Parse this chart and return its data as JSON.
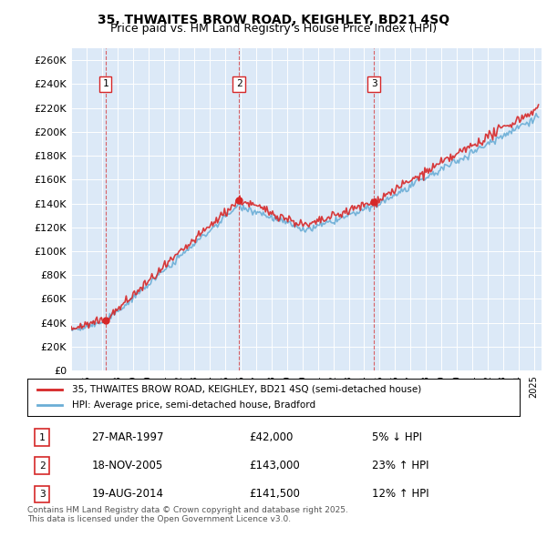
{
  "title_line1": "35, THWAITES BROW ROAD, KEIGHLEY, BD21 4SQ",
  "title_line2": "Price paid vs. HM Land Registry's House Price Index (HPI)",
  "ylabel": "",
  "background_color": "#dce9f7",
  "plot_bg_color": "#dce9f7",
  "fig_bg_color": "#ffffff",
  "legend_line1": "35, THWAITES BROW ROAD, KEIGHLEY, BD21 4SQ (semi-detached house)",
  "legend_line2": "HPI: Average price, semi-detached house, Bradford",
  "transactions": [
    {
      "num": 1,
      "date": "27-MAR-1997",
      "price": 42000,
      "pct": "5%",
      "dir": "↓",
      "year": 1997.23
    },
    {
      "num": 2,
      "date": "18-NOV-2005",
      "price": 143000,
      "pct": "23%",
      "dir": "↑",
      "year": 2005.88
    },
    {
      "num": 3,
      "date": "19-AUG-2014",
      "price": 141500,
      "pct": "12%",
      "dir": "↑",
      "year": 2014.63
    }
  ],
  "footnote": "Contains HM Land Registry data © Crown copyright and database right 2025.\nThis data is licensed under the Open Government Licence v3.0.",
  "ylim": [
    0,
    270000
  ],
  "yticks": [
    0,
    20000,
    40000,
    60000,
    80000,
    100000,
    120000,
    140000,
    160000,
    180000,
    200000,
    220000,
    240000,
    260000
  ],
  "xlim_start": 1995,
  "xlim_end": 2025.5
}
